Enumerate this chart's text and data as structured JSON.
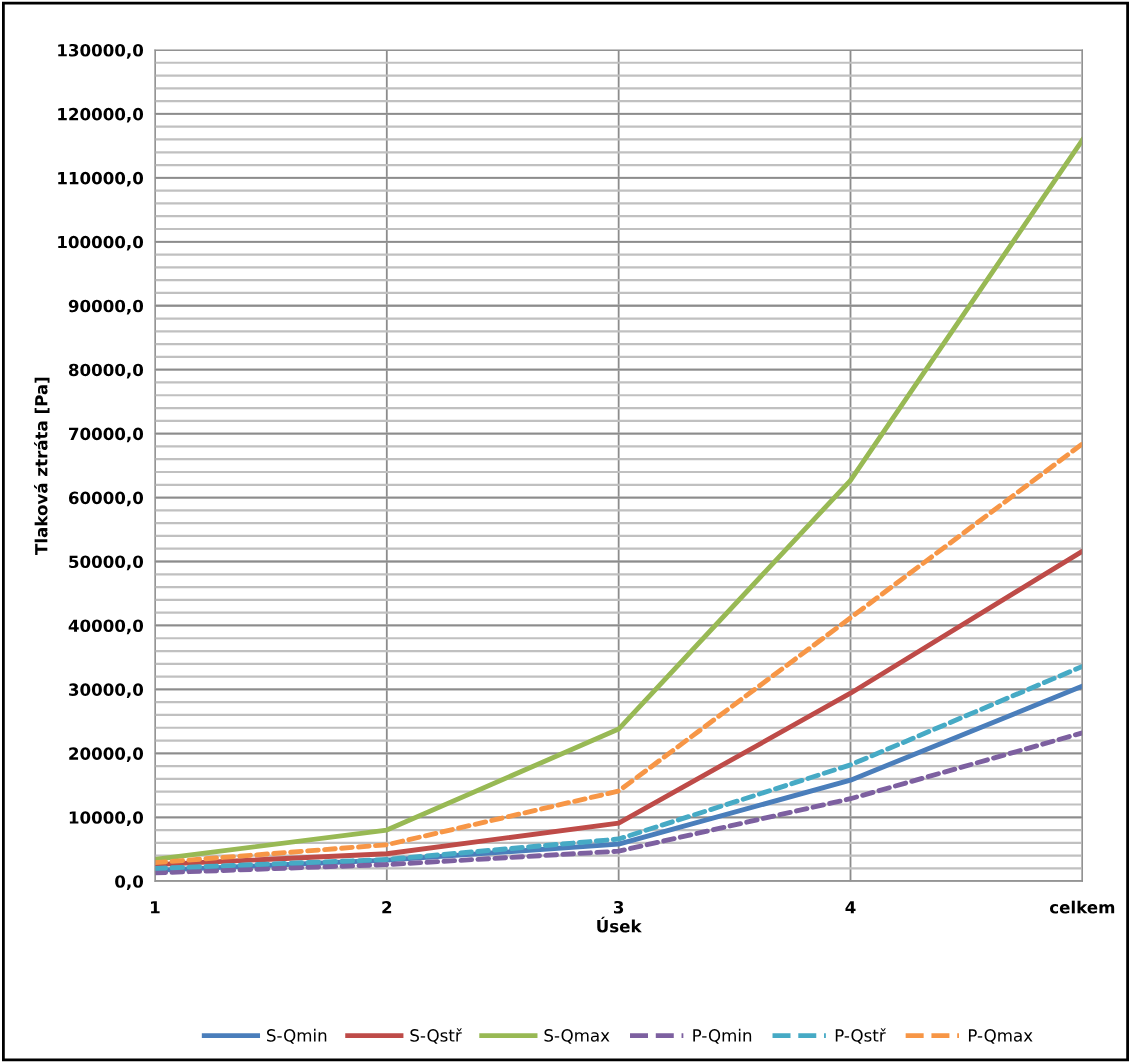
{
  "chart_data": {
    "type": "line",
    "xlabel": "Úsek",
    "ylabel": "Tlaková ztráta [Pa]",
    "categories": [
      "1",
      "2",
      "3",
      "4",
      "celkem"
    ],
    "series": [
      {
        "name": "S-Qmin",
        "color": "#4a7ebb",
        "line_style": "solid",
        "values": [
          1700,
          3300,
          5800,
          15800,
          30500
        ]
      },
      {
        "name": "S-Qstř",
        "color": "#be4b48",
        "line_style": "solid",
        "values": [
          2600,
          4300,
          9100,
          29400,
          51600
        ]
      },
      {
        "name": "S-Qmax",
        "color": "#98b954",
        "line_style": "solid",
        "values": [
          3400,
          8000,
          23800,
          62700,
          115900
        ]
      },
      {
        "name": "P-Qmin",
        "color": "#7d60a0",
        "line_style": "dashed",
        "values": [
          1300,
          2600,
          4700,
          12900,
          23200
        ]
      },
      {
        "name": "P-Qstř",
        "color": "#46aac5",
        "line_style": "dashed",
        "values": [
          2000,
          3400,
          6600,
          18200,
          33600
        ]
      },
      {
        "name": "P-Qmax",
        "color": "#f79646",
        "line_style": "dashed",
        "values": [
          2900,
          5700,
          14100,
          41200,
          68400
        ]
      }
    ],
    "ylim": [
      0,
      130000
    ],
    "yticks": [
      {
        "value": 0,
        "label": "0,0"
      },
      {
        "value": 2000,
        "label": null
      },
      {
        "value": 4000,
        "label": null
      },
      {
        "value": 6000,
        "label": null
      },
      {
        "value": 8000,
        "label": null
      },
      {
        "value": 10000,
        "label": "10000,0"
      },
      {
        "value": 12000,
        "label": null
      },
      {
        "value": 14000,
        "label": null
      },
      {
        "value": 16000,
        "label": null
      },
      {
        "value": 18000,
        "label": null
      },
      {
        "value": 20000,
        "label": "20000,0"
      },
      {
        "value": 22000,
        "label": null
      },
      {
        "value": 24000,
        "label": null
      },
      {
        "value": 26000,
        "label": null
      },
      {
        "value": 28000,
        "label": null
      },
      {
        "value": 30000,
        "label": "30000,0"
      },
      {
        "value": 32000,
        "label": null
      },
      {
        "value": 34000,
        "label": null
      },
      {
        "value": 36000,
        "label": null
      },
      {
        "value": 38000,
        "label": null
      },
      {
        "value": 40000,
        "label": "40000,0"
      },
      {
        "value": 42000,
        "label": null
      },
      {
        "value": 44000,
        "label": null
      },
      {
        "value": 46000,
        "label": null
      },
      {
        "value": 48000,
        "label": null
      },
      {
        "value": 50000,
        "label": "50000,0"
      },
      {
        "value": 52000,
        "label": null
      },
      {
        "value": 54000,
        "label": null
      },
      {
        "value": 56000,
        "label": null
      },
      {
        "value": 58000,
        "label": null
      },
      {
        "value": 60000,
        "label": "60000,0"
      },
      {
        "value": 62000,
        "label": null
      },
      {
        "value": 64000,
        "label": null
      },
      {
        "value": 66000,
        "label": null
      },
      {
        "value": 68000,
        "label": null
      },
      {
        "value": 70000,
        "label": "70000,0"
      },
      {
        "value": 72000,
        "label": null
      },
      {
        "value": 74000,
        "label": null
      },
      {
        "value": 76000,
        "label": null
      },
      {
        "value": 78000,
        "label": null
      },
      {
        "value": 80000,
        "label": "80000,0"
      },
      {
        "value": 82000,
        "label": null
      },
      {
        "value": 84000,
        "label": null
      },
      {
        "value": 86000,
        "label": null
      },
      {
        "value": 88000,
        "label": null
      },
      {
        "value": 90000,
        "label": "90000,0"
      },
      {
        "value": 92000,
        "label": null
      },
      {
        "value": 94000,
        "label": null
      },
      {
        "value": 96000,
        "label": null
      },
      {
        "value": 98000,
        "label": null
      },
      {
        "value": 100000,
        "label": "100000,0"
      },
      {
        "value": 102000,
        "label": null
      },
      {
        "value": 104000,
        "label": null
      },
      {
        "value": 106000,
        "label": null
      },
      {
        "value": 108000,
        "label": null
      },
      {
        "value": 110000,
        "label": "110000,0"
      },
      {
        "value": 112000,
        "label": null
      },
      {
        "value": 114000,
        "label": null
      },
      {
        "value": 116000,
        "label": null
      },
      {
        "value": 118000,
        "label": null
      },
      {
        "value": 120000,
        "label": "120000,0"
      },
      {
        "value": 122000,
        "label": null
      },
      {
        "value": 124000,
        "label": null
      },
      {
        "value": 126000,
        "label": null
      },
      {
        "value": 128000,
        "label": null
      },
      {
        "value": 130000,
        "label": "130000,0"
      }
    ],
    "grid": true,
    "legend": "bottom",
    "marker": "none"
  }
}
